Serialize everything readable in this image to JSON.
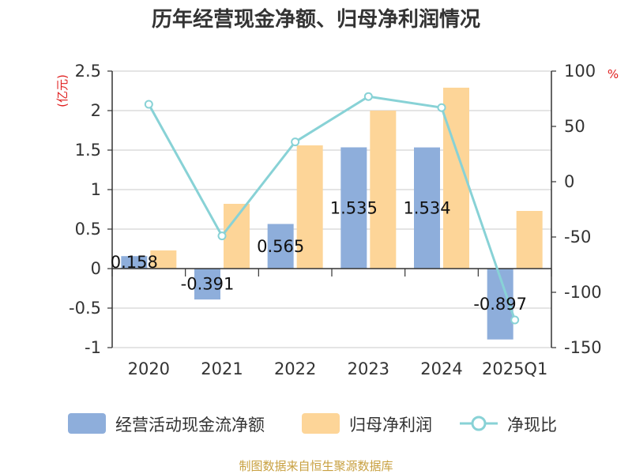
{
  "chart_data": {
    "type": "bar",
    "title": "历年经营现金净额、归母净利润情况",
    "categories": [
      "2020",
      "2021",
      "2022",
      "2023",
      "2024",
      "2025Q1"
    ],
    "series": [
      {
        "name": "经营活动现金流净额",
        "kind": "bar",
        "axis": "left",
        "color": "#8eaedb",
        "values": [
          0.158,
          -0.391,
          0.565,
          1.535,
          1.534,
          -0.897
        ],
        "labels": [
          "0.158",
          "-0.391",
          "0.565",
          "1.535",
          "1.534",
          "-0.897"
        ]
      },
      {
        "name": "归母净利润",
        "kind": "bar",
        "axis": "left",
        "color": "#fdd598",
        "values": [
          0.23,
          0.82,
          1.56,
          2.0,
          2.29,
          0.73
        ]
      },
      {
        "name": "净现比",
        "kind": "line",
        "axis": "right",
        "color": "#88d2d6",
        "values": [
          70,
          -49,
          36,
          77,
          67,
          -125
        ]
      }
    ],
    "left_axis": {
      "unit": "(亿元)",
      "ylim": [
        -1,
        2.5
      ],
      "ticks": [
        2.5,
        2,
        1.5,
        1,
        0.5,
        0,
        -0.5,
        -1
      ],
      "tick_labels": [
        "2.5",
        "2",
        "1.5",
        "1",
        "0.5",
        "0",
        "-0.5",
        "-1"
      ]
    },
    "right_axis": {
      "unit": "%",
      "ylim": [
        -150,
        100
      ],
      "ticks": [
        100,
        50,
        0,
        -50,
        -100,
        -150
      ],
      "tick_labels": [
        "100",
        "50",
        "0",
        "-50",
        "-100",
        "-150"
      ]
    },
    "grid": true,
    "legend_position": "bottom"
  },
  "source_text": "制图数据来自恒生聚源数据库"
}
